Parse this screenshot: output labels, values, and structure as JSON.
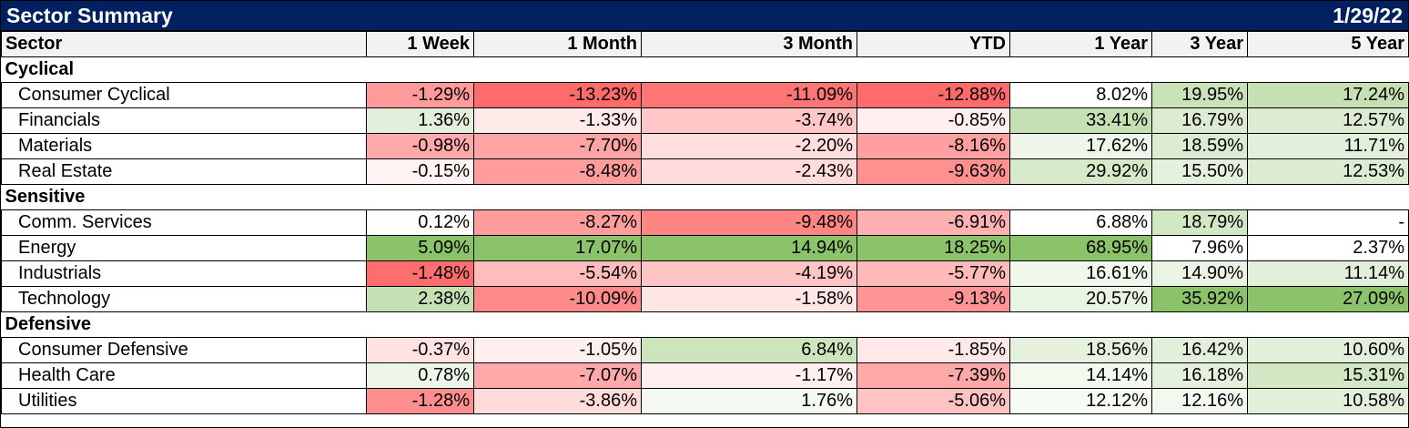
{
  "header": {
    "title": "Sector Summary",
    "date": "1/29/22"
  },
  "columns": [
    "Sector",
    "1 Week",
    "1 Month",
    "3 Month",
    "YTD",
    "1 Year",
    "3 Year",
    "5 Year"
  ],
  "groups": [
    {
      "name": "Cyclical",
      "rows": [
        {
          "sector": "Consumer Cyclical",
          "values": [
            "-1.29%",
            "-13.23%",
            "-11.09%",
            "-12.88%",
            "8.02%",
            "19.95%",
            "17.24%"
          ],
          "colors": [
            "#ff9a9a",
            "#ff6b6b",
            "#ff7474",
            "#ff6b6b",
            "#ffffff",
            "#c9e2b8",
            "#c6e0b4"
          ]
        },
        {
          "sector": "Financials",
          "values": [
            "1.36%",
            "-1.33%",
            "-3.74%",
            "-0.85%",
            "33.41%",
            "16.79%",
            "12.57%"
          ],
          "colors": [
            "#e2efda",
            "#ffeaea",
            "#ffc7c7",
            "#ffefef",
            "#c6e0b4",
            "#dcebd1",
            "#dcebd1"
          ]
        },
        {
          "sector": "Materials",
          "values": [
            "-0.98%",
            "-7.70%",
            "-2.20%",
            "-8.16%",
            "17.62%",
            "18.59%",
            "11.71%"
          ],
          "colors": [
            "#ffaaaa",
            "#ffa4a4",
            "#ffdede",
            "#ffa0a0",
            "#eef6e9",
            "#dcebd1",
            "#e2efda"
          ]
        },
        {
          "sector": "Real Estate",
          "values": [
            "-0.15%",
            "-8.48%",
            "-2.43%",
            "-9.63%",
            "29.92%",
            "15.50%",
            "12.53%"
          ],
          "colors": [
            "#fff3f3",
            "#ff9c9c",
            "#ffdcdc",
            "#ff9090",
            "#d6e9c9",
            "#e5f1dd",
            "#dcebd1"
          ]
        }
      ]
    },
    {
      "name": "Sensitive",
      "rows": [
        {
          "sector": "Comm. Services",
          "values": [
            "0.12%",
            "-8.27%",
            "-9.48%",
            "-6.91%",
            "6.88%",
            "18.79%",
            "-"
          ],
          "colors": [
            "#fdfefc",
            "#ff9d9d",
            "#ff8585",
            "#ffb1b1",
            "#ffffff",
            "#d2e7c4",
            "#ffffff"
          ]
        },
        {
          "sector": "Energy",
          "values": [
            "5.09%",
            "17.07%",
            "14.94%",
            "18.25%",
            "68.95%",
            "7.96%",
            "2.37%"
          ],
          "colors": [
            "#8bc36a",
            "#8bc36a",
            "#8bc36a",
            "#8bc36a",
            "#8bc36a",
            "#ffffff",
            "#ffffff"
          ]
        },
        {
          "sector": "Industrials",
          "values": [
            "-1.48%",
            "-5.54%",
            "-4.19%",
            "-5.77%",
            "16.61%",
            "14.90%",
            "11.14%"
          ],
          "colors": [
            "#ff6e6e",
            "#ffbcbc",
            "#ffc4c4",
            "#ffbaba",
            "#f0f7eb",
            "#ebf4e4",
            "#e2efda"
          ]
        },
        {
          "sector": "Technology",
          "values": [
            "2.38%",
            "-10.09%",
            "-1.58%",
            "-9.13%",
            "20.57%",
            "35.92%",
            "27.09%"
          ],
          "colors": [
            "#c6e0b4",
            "#ff8a8a",
            "#ffe6e6",
            "#ff9494",
            "#eaf4e3",
            "#8bc36a",
            "#8bc36a"
          ]
        }
      ]
    },
    {
      "name": "Defensive",
      "rows": [
        {
          "sector": "Consumer Defensive",
          "values": [
            "-0.37%",
            "-1.05%",
            "6.84%",
            "-1.85%",
            "18.56%",
            "16.42%",
            "10.60%"
          ],
          "colors": [
            "#ffe3e3",
            "#ffefef",
            "#cce5bd",
            "#ffe8e8",
            "#e5f1dd",
            "#e2efda",
            "#e2efda"
          ]
        },
        {
          "sector": "Health Care",
          "values": [
            "0.78%",
            "-7.07%",
            "-1.17%",
            "-7.39%",
            "14.14%",
            "16.18%",
            "15.31%"
          ],
          "colors": [
            "#eef6e9",
            "#ffaaaa",
            "#fff0f0",
            "#ffa8a8",
            "#f3f9ef",
            "#e5f1dd",
            "#d2e7c4"
          ]
        },
        {
          "sector": "Utilities",
          "values": [
            "-1.28%",
            "-3.86%",
            "1.76%",
            "-5.06%",
            "12.12%",
            "12.16%",
            "10.58%"
          ],
          "colors": [
            "#ff8e8e",
            "#ffdcdc",
            "#f4faf0",
            "#ffc3c3",
            "#f6fbf3",
            "#f3f9ef",
            "#e2efda"
          ]
        }
      ]
    }
  ]
}
